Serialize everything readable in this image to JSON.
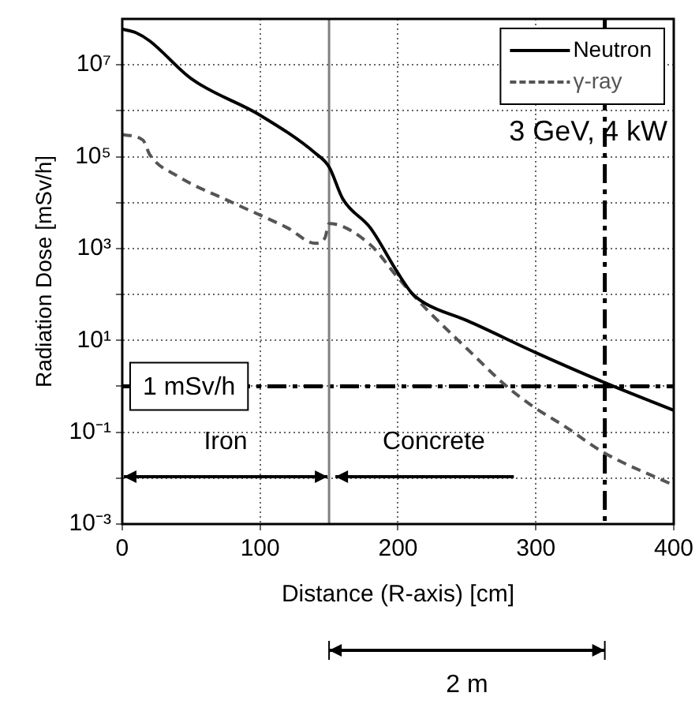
{
  "chart_data": {
    "type": "line",
    "xlabel": "Distance (R-axis) [cm]",
    "ylabel": "Radiation Dose [mSv/h]",
    "series": [
      {
        "name": "Neutron",
        "color": "#000000",
        "line_style": "solid",
        "x": [
          0,
          10,
          20,
          50,
          100,
          140,
          150,
          160,
          180,
          200,
          210,
          220,
          250,
          300,
          350,
          400
        ],
        "values": [
          60000000.0,
          50000000.0,
          33000000.0,
          5000000.0,
          800000.0,
          120000.0,
          60000.0,
          12000.0,
          2800.0,
          290,
          107,
          63,
          27,
          5.4,
          1.2,
          0.3
        ]
      },
      {
        "name": "γ-ray",
        "color": "#555555",
        "line_style": "dashed",
        "x": [
          0,
          15,
          20,
          40,
          80,
          120,
          140,
          147,
          150,
          180,
          200,
          220,
          250,
          280,
          300,
          320,
          350,
          400
        ],
        "values": [
          300000.0,
          230000.0,
          110000.0,
          38000.0,
          10000.0,
          2800.0,
          1300.0,
          1700.0,
          3500.0,
          1200.0,
          230,
          50,
          6.6,
          0.93,
          0.33,
          0.14,
          0.035,
          0.007
        ]
      }
    ],
    "xlim": [
      0,
      400
    ],
    "xticks": [
      0,
      100,
      200,
      300,
      400
    ],
    "log": "y",
    "ylim": [
      0.001,
      100000000
    ],
    "yticks": [
      {
        "value": 0.001,
        "label": "10⁻³"
      },
      {
        "value": 0.01,
        "label": null
      },
      {
        "value": 0.1,
        "label": "10⁻¹"
      },
      {
        "value": 1,
        "label": null
      },
      {
        "value": 10,
        "label": "10¹"
      },
      {
        "value": 100,
        "label": null
      },
      {
        "value": 1000,
        "label": "10³"
      },
      {
        "value": 10000,
        "label": null
      },
      {
        "value": 100000,
        "label": "10⁵"
      },
      {
        "value": 1000000,
        "label": null
      },
      {
        "value": 10000000,
        "label": "10⁷"
      }
    ],
    "grid": true,
    "legend": "top right",
    "marker": "none",
    "ref_lines": [
      {
        "axis": "y",
        "value": 1,
        "label": "1 mSv/h",
        "color": "#000000",
        "line_style": "dashed"
      },
      {
        "axis": "x",
        "value": 150,
        "color": "#808080",
        "line_style": "solid"
      },
      {
        "axis": "x",
        "value": 350,
        "color": "#000000",
        "line_style": "dashed"
      }
    ],
    "annotations": [
      "3 GeV, 4 kW",
      "Iron",
      "Concrete",
      "2 m"
    ]
  }
}
